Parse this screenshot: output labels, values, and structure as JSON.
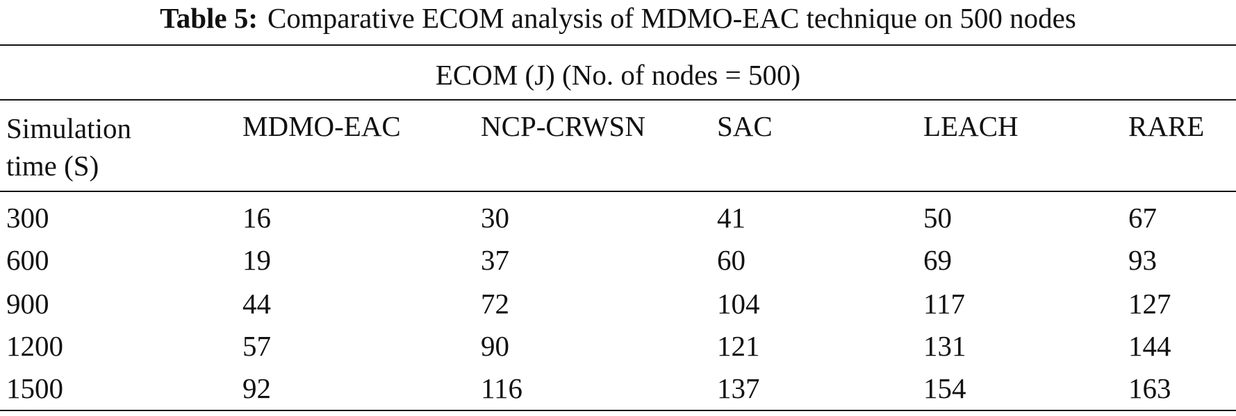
{
  "caption": {
    "label": "Table 5:",
    "text": "Comparative ECOM analysis of MDMO-EAC technique on 500 nodes"
  },
  "table": {
    "group_header": "ECOM (J) (No. of nodes = 500)",
    "columns": [
      "Simulation time (S)",
      "MDMO-EAC",
      "NCP-CRWSN",
      "SAC",
      "LEACH",
      "RARE"
    ],
    "rows": [
      [
        300,
        16,
        30,
        41,
        50,
        67
      ],
      [
        600,
        19,
        37,
        60,
        69,
        93
      ],
      [
        900,
        44,
        72,
        104,
        117,
        127
      ],
      [
        1200,
        57,
        90,
        121,
        131,
        144
      ],
      [
        1500,
        92,
        116,
        137,
        154,
        163
      ]
    ]
  }
}
